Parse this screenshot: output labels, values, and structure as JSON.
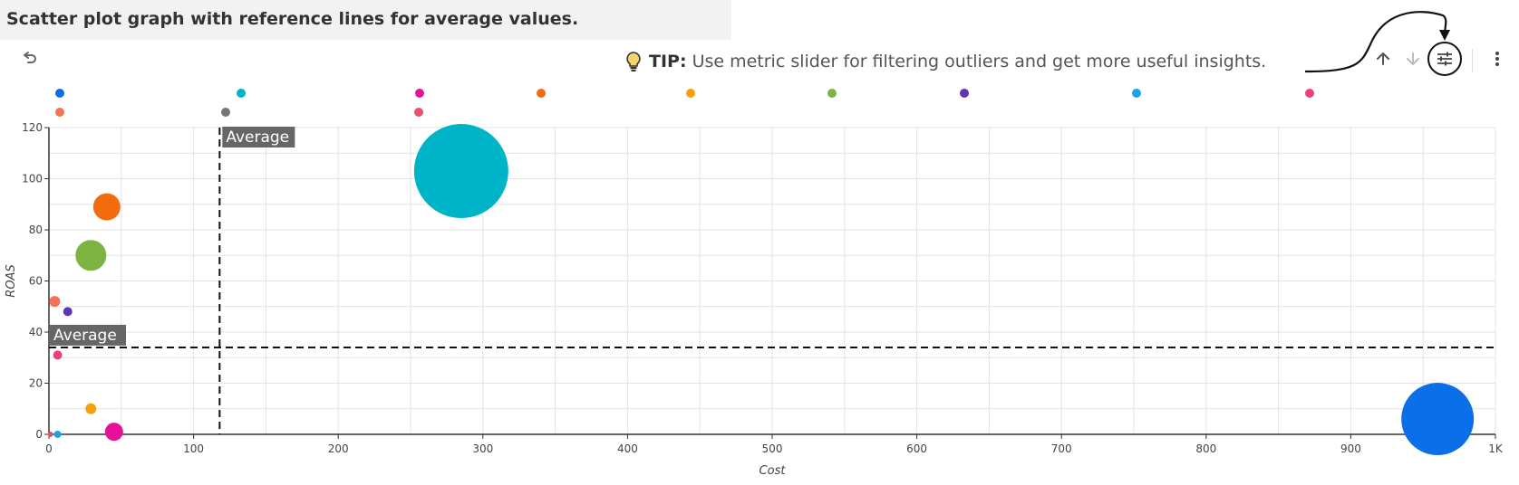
{
  "page": {
    "title": "Scatter plot graph with reference lines for average values."
  },
  "toolbar": {
    "tip_label": "TIP:",
    "tip_text": "Use metric slider for filtering outliers and get more useful insights.",
    "icons": [
      "undo-icon",
      "lightbulb-icon",
      "arrow-up-icon",
      "arrow-down-icon",
      "sliders-icon",
      "more-vertical-icon"
    ]
  },
  "colors": {
    "grid": "#e3e3e3",
    "axis": "#333333",
    "reference_line": "#111111",
    "reference_label_bg": "#666666"
  },
  "legend_colors": [
    "#0a6fe8",
    "#00b4c8",
    "#e6119a",
    "#f26b0f",
    "#f5a20a",
    "#7cb342",
    "#5e35b1",
    "#1aa3e8",
    "#ec407a",
    "#f47352",
    "#757575",
    "#e8506e"
  ],
  "chart_data": {
    "type": "scatter",
    "xlabel": "Cost",
    "ylabel": "ROAS",
    "xlim": [
      0,
      1000
    ],
    "ylim": [
      0,
      120
    ],
    "x_ticks": [
      {
        "value": 0,
        "label": "0"
      },
      {
        "value": 100,
        "label": "100"
      },
      {
        "value": 200,
        "label": "200"
      },
      {
        "value": 300,
        "label": "300"
      },
      {
        "value": 400,
        "label": "400"
      },
      {
        "value": 500,
        "label": "500"
      },
      {
        "value": 600,
        "label": "600"
      },
      {
        "value": 700,
        "label": "700"
      },
      {
        "value": 800,
        "label": "800"
      },
      {
        "value": 900,
        "label": "900"
      },
      {
        "value": 1000,
        "label": "1K"
      }
    ],
    "y_ticks": [
      0,
      20,
      40,
      60,
      80,
      100,
      120
    ],
    "grid": true,
    "legend_position": "top",
    "points": [
      {
        "x": 960,
        "y": 6,
        "size": 40,
        "color": "#0a6fe8"
      },
      {
        "x": 285,
        "y": 103,
        "size": 52,
        "color": "#00b4c8"
      },
      {
        "x": 45,
        "y": 1,
        "size": 10,
        "color": "#e6119a"
      },
      {
        "x": 40,
        "y": 89,
        "size": 15,
        "color": "#f26b0f"
      },
      {
        "x": 29,
        "y": 10,
        "size": 6,
        "color": "#f5a20a"
      },
      {
        "x": 29,
        "y": 70,
        "size": 17,
        "color": "#7cb342"
      },
      {
        "x": 13,
        "y": 48,
        "size": 5,
        "color": "#5e35b1"
      },
      {
        "x": 6,
        "y": 0,
        "size": 4,
        "color": "#1aa3e8"
      },
      {
        "x": 6,
        "y": 31,
        "size": 5,
        "color": "#ec407a"
      },
      {
        "x": 4,
        "y": 52,
        "size": 6,
        "color": "#f47352"
      },
      {
        "x": 1,
        "y": 0,
        "size": 3,
        "color": "#e8506e"
      }
    ],
    "reference_lines": [
      {
        "axis": "x",
        "value": 118,
        "label": "Average"
      },
      {
        "axis": "y",
        "value": 34,
        "label": "Average"
      }
    ]
  }
}
